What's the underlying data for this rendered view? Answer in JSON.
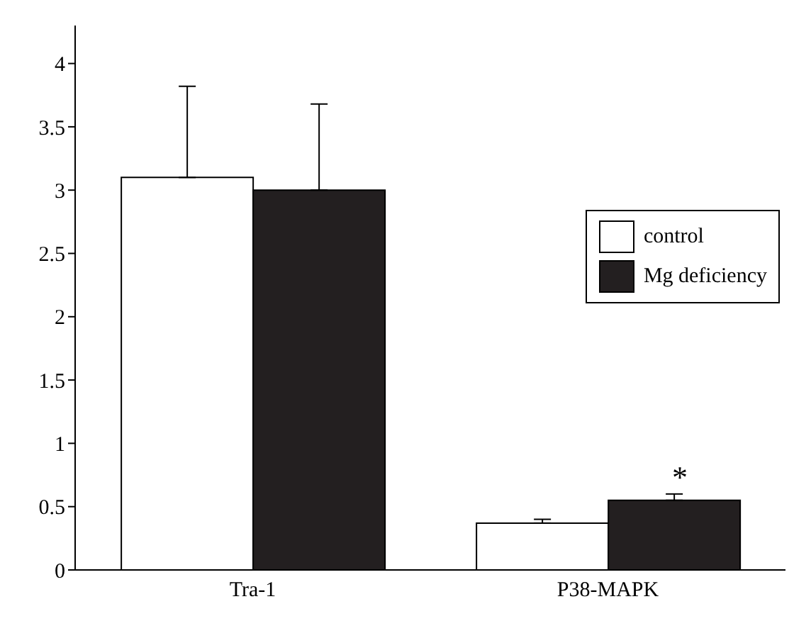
{
  "chart_data": {
    "type": "bar",
    "categories": [
      "Tra-1",
      "P38-MAPK"
    ],
    "series": [
      {
        "name": "control",
        "color": "#ffffff",
        "values": [
          3.1,
          0.37
        ],
        "errors": [
          [
            3.1,
            3.82
          ],
          [
            0.37,
            0.4
          ]
        ]
      },
      {
        "name": "Mg deficiency",
        "color": "#231f20",
        "values": [
          3.0,
          0.55
        ],
        "errors": [
          [
            3.0,
            3.68
          ],
          [
            0.55,
            0.6
          ]
        ]
      }
    ],
    "ylim": [
      0,
      4.3
    ],
    "yticks": [
      0,
      0.5,
      1,
      1.5,
      2,
      2.5,
      3,
      3.5,
      4
    ],
    "grid": false,
    "legend": "right",
    "annotations": [
      "*"
    ]
  }
}
